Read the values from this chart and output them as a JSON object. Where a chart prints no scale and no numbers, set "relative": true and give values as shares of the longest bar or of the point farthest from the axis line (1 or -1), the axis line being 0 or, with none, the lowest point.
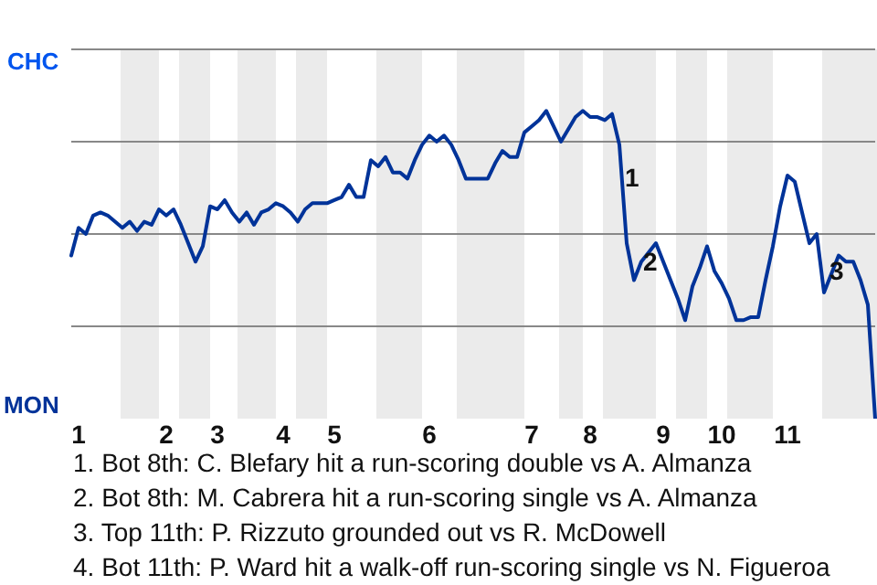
{
  "chart_data": {
    "type": "line",
    "relative": true,
    "categories": [
      null,
      "1",
      null,
      null,
      null,
      null,
      null,
      null,
      null,
      null,
      null,
      null,
      null,
      "2",
      null,
      null,
      null,
      null,
      null,
      null,
      "3",
      null,
      null,
      null,
      null,
      null,
      null,
      null,
      null,
      "4",
      null,
      null,
      null,
      null,
      null,
      null,
      "5",
      null,
      null,
      null,
      null,
      null,
      null,
      null,
      null,
      null,
      null,
      null,
      null,
      "6",
      null,
      null,
      null,
      null,
      null,
      null,
      null,
      null,
      null,
      null,
      null,
      null,
      null,
      "7",
      null,
      null,
      null,
      null,
      null,
      null,
      null,
      "8",
      null,
      null,
      null,
      null,
      null,
      null,
      null,
      null,
      null,
      "9",
      null,
      null,
      null,
      null,
      null,
      null,
      null,
      "10",
      null,
      null,
      null,
      null,
      null,
      null,
      null,
      null,
      "11",
      null,
      null,
      null,
      null,
      null,
      null,
      null,
      null,
      null,
      null,
      null,
      null
    ],
    "series": [
      {
        "values": [
          0.53,
          0.62,
          0.6,
          0.66,
          0.67,
          0.66,
          0.64,
          0.62,
          0.64,
          0.61,
          0.64,
          0.63,
          0.68,
          0.66,
          0.68,
          0.63,
          0.57,
          0.51,
          0.56,
          0.69,
          0.68,
          0.71,
          0.67,
          0.64,
          0.67,
          0.63,
          0.67,
          0.68,
          0.7,
          0.69,
          0.67,
          0.64,
          0.68,
          0.7,
          0.7,
          0.7,
          0.71,
          0.72,
          0.76,
          0.72,
          0.72,
          0.84,
          0.82,
          0.85,
          0.8,
          0.8,
          0.78,
          0.84,
          0.89,
          0.92,
          0.9,
          0.92,
          0.89,
          0.84,
          0.78,
          0.78,
          0.78,
          0.78,
          0.83,
          0.87,
          0.85,
          0.85,
          0.93,
          0.95,
          0.97,
          1,
          0.95,
          0.9,
          0.94,
          0.98,
          1,
          0.98,
          0.98,
          0.97,
          0.99,
          0.89,
          0.57,
          0.45,
          0.51,
          0.54,
          0.57,
          0.51,
          0.45,
          0.39,
          0.32,
          0.43,
          0.49,
          0.56,
          0.48,
          0.44,
          0.39,
          0.32,
          0.32,
          0.33,
          0.33,
          0.45,
          0.56,
          0.69,
          0.79,
          0.77,
          0.67,
          0.57,
          0.6,
          0.41,
          0.47,
          0.53,
          0.51,
          0.51,
          0.45,
          0.37,
          0
        ],
        "color": "#003399"
      }
    ],
    "grid": "y",
    "legend": false,
    "marker": "none",
    "line_style": "solid",
    "annotations": [
      "CHC",
      "MON",
      "1",
      "2",
      "3",
      "1. Bot 8th: C. Blefary hit a run-scoring double vs A. Almanza",
      "2. Bot 8th: M. Cabrera hit a run-scoring single vs A. Almanza",
      "3. Top 11th: P. Rizzuto grounded out vs R. McDowell",
      "4. Bot 11th: P. Ward hit a walk-off run-scoring single vs N. Figueroa"
    ]
  }
}
